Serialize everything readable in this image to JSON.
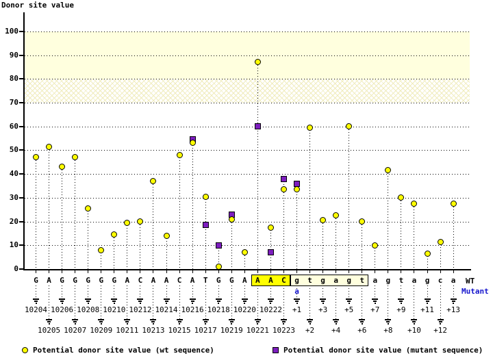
{
  "title": "Donor site value",
  "wt_label": "WT",
  "mutant_label": "Mutant",
  "legend": {
    "wt": "Potential donor site value (wt sequence)",
    "mutant": "Potential donor site value (mutant sequence)"
  },
  "colors": {
    "wt_marker": "#ffff00",
    "mutant_marker": "#7d1ebe",
    "mutant_text": "#1515cd",
    "band": "#ffffde",
    "exon_highlight": "#ffff00",
    "splice_box": "#ffffde"
  },
  "chart_data": {
    "type": "scatter",
    "title": "Donor site value",
    "ylabel": "Donor site value",
    "ylim": [
      0,
      110
    ],
    "yticks": [
      0,
      10,
      20,
      30,
      40,
      50,
      60,
      70,
      80,
      90,
      100
    ],
    "bands": {
      "solid": [
        80,
        100
      ],
      "hatched": [
        70,
        80
      ]
    },
    "legend_position": "bottom",
    "series_names": [
      "wt",
      "mutant"
    ],
    "columns": [
      {
        "pos": "10204",
        "base": "G",
        "wt": 47
      },
      {
        "pos": "10205",
        "base": "A",
        "wt": 51.5
      },
      {
        "pos": "10206",
        "base": "G",
        "wt": 43
      },
      {
        "pos": "10207",
        "base": "G",
        "wt": 47
      },
      {
        "pos": "10208",
        "base": "G",
        "wt": 25.5
      },
      {
        "pos": "10209",
        "base": "G",
        "wt": 8
      },
      {
        "pos": "10210",
        "base": "G",
        "wt": 14.5
      },
      {
        "pos": "10211",
        "base": "A",
        "wt": 19.5
      },
      {
        "pos": "10212",
        "base": "C",
        "wt": 20
      },
      {
        "pos": "10213",
        "base": "A",
        "wt": 37
      },
      {
        "pos": "10214",
        "base": "A",
        "wt": 14
      },
      {
        "pos": "10215",
        "base": "C",
        "wt": 48
      },
      {
        "pos": "10216",
        "base": "A",
        "wt": 53,
        "mutant": 54.5
      },
      {
        "pos": "10217",
        "base": "T",
        "wt": 30.5,
        "mutant": 18.5
      },
      {
        "pos": "10218",
        "base": "G",
        "wt": 1,
        "mutant": 10
      },
      {
        "pos": "10219",
        "base": "G",
        "wt": 21,
        "mutant": 23
      },
      {
        "pos": "10220",
        "base": "A",
        "wt": 7
      },
      {
        "pos": "10221",
        "base": "A",
        "wt": 87,
        "mutant": 60
      },
      {
        "pos": "10222",
        "base": "A",
        "wt": 17.5,
        "mutant": 7
      },
      {
        "pos": "10223",
        "base": "C",
        "wt": 33.5,
        "mutant": 38
      },
      {
        "pos": "+1",
        "base": "g",
        "wt": 33.5,
        "mutant": 36
      },
      {
        "pos": "+2",
        "base": "t",
        "wt": 59.5
      },
      {
        "pos": "+3",
        "base": "g",
        "wt": 20.5
      },
      {
        "pos": "+4",
        "base": "a",
        "wt": 22.5
      },
      {
        "pos": "+5",
        "base": "g",
        "wt": 60
      },
      {
        "pos": "+6",
        "base": "t",
        "wt": 20
      },
      {
        "pos": "+7",
        "base": "a",
        "wt": 10
      },
      {
        "pos": "+8",
        "base": "g",
        "wt": 41.5
      },
      {
        "pos": "+9",
        "base": "t",
        "wt": 30
      },
      {
        "pos": "+10",
        "base": "a",
        "wt": 27.5
      },
      {
        "pos": "+11",
        "base": "g",
        "wt": 6.5
      },
      {
        "pos": "+12",
        "base": "c",
        "wt": 11.5
      },
      {
        "pos": "+13",
        "base": "a",
        "wt": 27.5
      }
    ],
    "exon_highlight_box": {
      "from_col": 17,
      "to_col": 19,
      "sequence": "AAC"
    },
    "splice_site_box": {
      "from_col": 20,
      "to_col": 25,
      "sequence": "gtgagt"
    },
    "mutant_base": {
      "col": 20,
      "base": "a"
    }
  }
}
